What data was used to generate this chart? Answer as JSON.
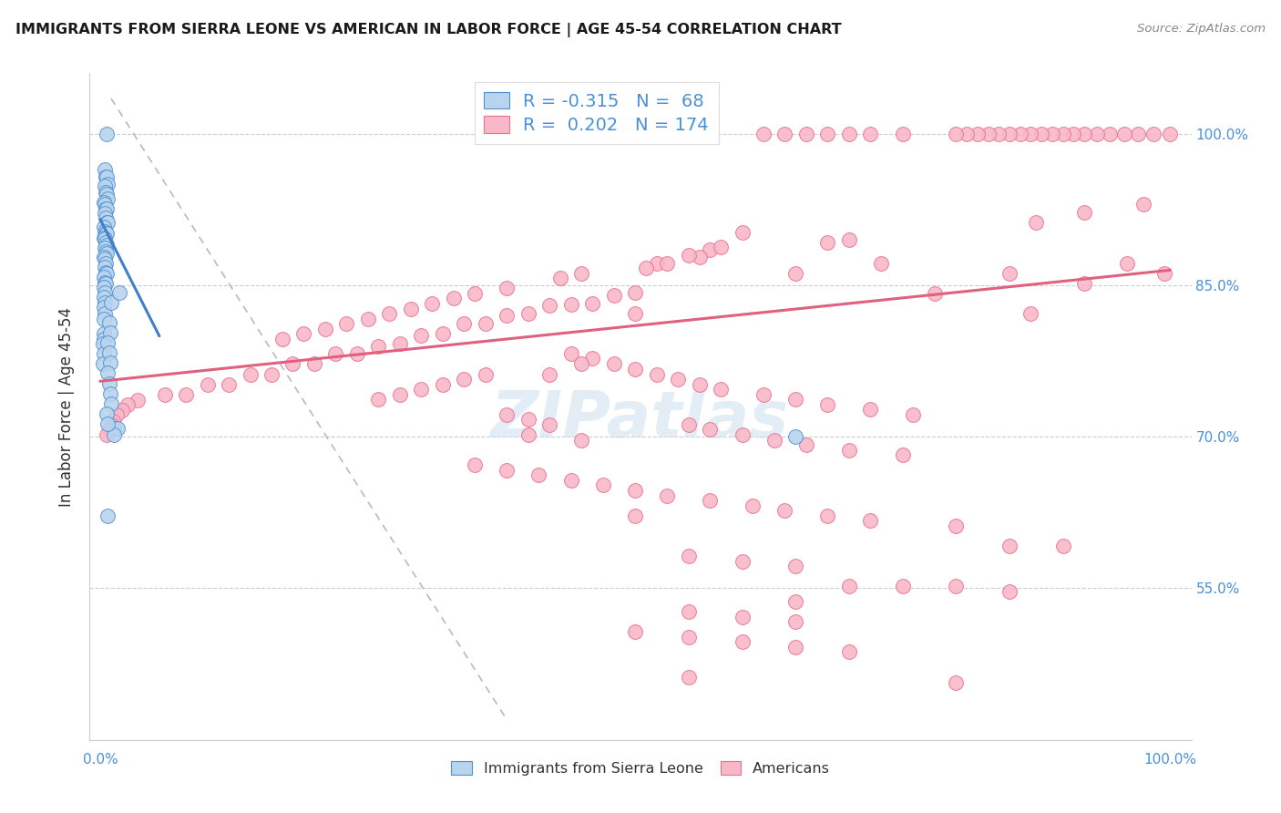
{
  "title": "IMMIGRANTS FROM SIERRA LEONE VS AMERICAN IN LABOR FORCE | AGE 45-54 CORRELATION CHART",
  "source": "Source: ZipAtlas.com",
  "ylabel": "In Labor Force | Age 45-54",
  "ytick_labels": [
    "100.0%",
    "85.0%",
    "70.0%",
    "55.0%"
  ],
  "ytick_values": [
    1.0,
    0.85,
    0.7,
    0.55
  ],
  "xlim": [
    -0.01,
    1.02
  ],
  "ylim": [
    0.4,
    1.06
  ],
  "blue_color": "#b8d4ee",
  "pink_color": "#f9b8c8",
  "blue_edge_color": "#5090d0",
  "pink_edge_color": "#e87090",
  "blue_line_color": "#4080c8",
  "pink_line_color": "#e06080",
  "dashed_line_color": "#b8b8c8",
  "watermark": "ZIPatlas",
  "legend_label_blue": "Immigrants from Sierra Leone",
  "legend_label_pink": "Americans",
  "blue_R": -0.315,
  "blue_N": 68,
  "pink_R": 0.202,
  "pink_N": 174,
  "blue_line": [
    [
      0.0,
      0.915
    ],
    [
      0.055,
      0.8
    ]
  ],
  "pink_line": [
    [
      0.0,
      0.755
    ],
    [
      1.0,
      0.865
    ]
  ],
  "dashed_line": [
    [
      0.01,
      1.035
    ],
    [
      0.38,
      0.42
    ]
  ],
  "blue_scatter": [
    [
      0.006,
      1.0
    ],
    [
      0.004,
      0.965
    ],
    [
      0.005,
      0.957
    ],
    [
      0.006,
      0.957
    ],
    [
      0.007,
      0.95
    ],
    [
      0.004,
      0.948
    ],
    [
      0.005,
      0.942
    ],
    [
      0.006,
      0.94
    ],
    [
      0.007,
      0.936
    ],
    [
      0.003,
      0.932
    ],
    [
      0.004,
      0.93
    ],
    [
      0.005,
      0.926
    ],
    [
      0.006,
      0.926
    ],
    [
      0.004,
      0.921
    ],
    [
      0.005,
      0.917
    ],
    [
      0.006,
      0.912
    ],
    [
      0.007,
      0.912
    ],
    [
      0.003,
      0.908
    ],
    [
      0.004,
      0.903
    ],
    [
      0.005,
      0.901
    ],
    [
      0.006,
      0.901
    ],
    [
      0.003,
      0.897
    ],
    [
      0.004,
      0.896
    ],
    [
      0.005,
      0.892
    ],
    [
      0.006,
      0.89
    ],
    [
      0.004,
      0.887
    ],
    [
      0.005,
      0.883
    ],
    [
      0.006,
      0.882
    ],
    [
      0.003,
      0.878
    ],
    [
      0.004,
      0.876
    ],
    [
      0.005,
      0.872
    ],
    [
      0.004,
      0.868
    ],
    [
      0.005,
      0.863
    ],
    [
      0.006,
      0.862
    ],
    [
      0.003,
      0.858
    ],
    [
      0.004,
      0.853
    ],
    [
      0.005,
      0.852
    ],
    [
      0.003,
      0.848
    ],
    [
      0.004,
      0.843
    ],
    [
      0.003,
      0.838
    ],
    [
      0.004,
      0.833
    ],
    [
      0.003,
      0.828
    ],
    [
      0.004,
      0.822
    ],
    [
      0.003,
      0.817
    ],
    [
      0.003,
      0.802
    ],
    [
      0.003,
      0.797
    ],
    [
      0.002,
      0.792
    ],
    [
      0.003,
      0.782
    ],
    [
      0.002,
      0.772
    ],
    [
      0.013,
      0.708
    ],
    [
      0.016,
      0.708
    ],
    [
      0.013,
      0.702
    ],
    [
      0.007,
      0.622
    ],
    [
      0.008,
      0.813
    ],
    [
      0.009,
      0.803
    ],
    [
      0.007,
      0.793
    ],
    [
      0.008,
      0.783
    ],
    [
      0.009,
      0.773
    ],
    [
      0.007,
      0.763
    ],
    [
      0.008,
      0.753
    ],
    [
      0.009,
      0.743
    ],
    [
      0.01,
      0.733
    ],
    [
      0.006,
      0.723
    ],
    [
      0.007,
      0.713
    ],
    [
      0.01,
      0.833
    ],
    [
      0.018,
      0.843
    ],
    [
      0.65,
      0.7
    ]
  ],
  "pink_scatter": [
    [
      1.0,
      1.0
    ],
    [
      0.985,
      1.0
    ],
    [
      0.97,
      1.0
    ],
    [
      0.957,
      1.0
    ],
    [
      0.944,
      1.0
    ],
    [
      0.932,
      1.0
    ],
    [
      0.92,
      1.0
    ],
    [
      0.91,
      1.0
    ],
    [
      0.9,
      1.0
    ],
    [
      0.89,
      1.0
    ],
    [
      0.88,
      1.0
    ],
    [
      0.87,
      1.0
    ],
    [
      0.86,
      1.0
    ],
    [
      0.85,
      1.0
    ],
    [
      0.84,
      1.0
    ],
    [
      0.83,
      1.0
    ],
    [
      0.82,
      1.0
    ],
    [
      0.81,
      1.0
    ],
    [
      0.8,
      1.0
    ],
    [
      0.75,
      1.0
    ],
    [
      0.72,
      1.0
    ],
    [
      0.7,
      1.0
    ],
    [
      0.68,
      1.0
    ],
    [
      0.66,
      1.0
    ],
    [
      0.64,
      1.0
    ],
    [
      0.62,
      1.0
    ],
    [
      0.975,
      0.93
    ],
    [
      0.92,
      0.922
    ],
    [
      0.875,
      0.912
    ],
    [
      0.7,
      0.895
    ],
    [
      0.68,
      0.892
    ],
    [
      0.57,
      0.885
    ],
    [
      0.56,
      0.878
    ],
    [
      0.55,
      0.88
    ],
    [
      0.52,
      0.872
    ],
    [
      0.45,
      0.862
    ],
    [
      0.43,
      0.857
    ],
    [
      0.995,
      0.862
    ],
    [
      0.5,
      0.843
    ],
    [
      0.48,
      0.84
    ],
    [
      0.46,
      0.832
    ],
    [
      0.44,
      0.831
    ],
    [
      0.42,
      0.83
    ],
    [
      0.4,
      0.822
    ],
    [
      0.38,
      0.82
    ],
    [
      0.36,
      0.812
    ],
    [
      0.34,
      0.812
    ],
    [
      0.32,
      0.802
    ],
    [
      0.3,
      0.8
    ],
    [
      0.28,
      0.792
    ],
    [
      0.26,
      0.79
    ],
    [
      0.24,
      0.782
    ],
    [
      0.22,
      0.782
    ],
    [
      0.2,
      0.772
    ],
    [
      0.18,
      0.772
    ],
    [
      0.16,
      0.762
    ],
    [
      0.14,
      0.762
    ],
    [
      0.12,
      0.752
    ],
    [
      0.1,
      0.752
    ],
    [
      0.08,
      0.742
    ],
    [
      0.06,
      0.742
    ],
    [
      0.035,
      0.736
    ],
    [
      0.025,
      0.732
    ],
    [
      0.02,
      0.726
    ],
    [
      0.015,
      0.722
    ],
    [
      0.012,
      0.716
    ],
    [
      0.01,
      0.712
    ],
    [
      0.008,
      0.707
    ],
    [
      0.006,
      0.702
    ],
    [
      0.6,
      0.902
    ],
    [
      0.58,
      0.888
    ],
    [
      0.53,
      0.872
    ],
    [
      0.51,
      0.867
    ],
    [
      0.38,
      0.847
    ],
    [
      0.35,
      0.842
    ],
    [
      0.33,
      0.837
    ],
    [
      0.31,
      0.832
    ],
    [
      0.29,
      0.827
    ],
    [
      0.27,
      0.822
    ],
    [
      0.25,
      0.817
    ],
    [
      0.65,
      0.862
    ],
    [
      0.23,
      0.812
    ],
    [
      0.21,
      0.807
    ],
    [
      0.19,
      0.802
    ],
    [
      0.17,
      0.797
    ],
    [
      0.73,
      0.872
    ],
    [
      0.78,
      0.842
    ],
    [
      0.85,
      0.862
    ],
    [
      0.92,
      0.852
    ],
    [
      0.96,
      0.872
    ],
    [
      0.87,
      0.822
    ],
    [
      0.5,
      0.822
    ],
    [
      0.44,
      0.782
    ],
    [
      0.46,
      0.778
    ],
    [
      0.48,
      0.772
    ],
    [
      0.5,
      0.767
    ],
    [
      0.52,
      0.762
    ],
    [
      0.54,
      0.757
    ],
    [
      0.56,
      0.752
    ],
    [
      0.58,
      0.747
    ],
    [
      0.62,
      0.742
    ],
    [
      0.65,
      0.737
    ],
    [
      0.68,
      0.732
    ],
    [
      0.72,
      0.727
    ],
    [
      0.76,
      0.722
    ],
    [
      0.36,
      0.762
    ],
    [
      0.34,
      0.757
    ],
    [
      0.32,
      0.752
    ],
    [
      0.3,
      0.747
    ],
    [
      0.28,
      0.742
    ],
    [
      0.26,
      0.737
    ],
    [
      0.38,
      0.722
    ],
    [
      0.4,
      0.717
    ],
    [
      0.42,
      0.712
    ],
    [
      0.55,
      0.712
    ],
    [
      0.57,
      0.707
    ],
    [
      0.6,
      0.702
    ],
    [
      0.63,
      0.697
    ],
    [
      0.66,
      0.692
    ],
    [
      0.7,
      0.687
    ],
    [
      0.75,
      0.682
    ],
    [
      0.35,
      0.672
    ],
    [
      0.38,
      0.667
    ],
    [
      0.41,
      0.662
    ],
    [
      0.44,
      0.657
    ],
    [
      0.47,
      0.652
    ],
    [
      0.5,
      0.647
    ],
    [
      0.53,
      0.642
    ],
    [
      0.57,
      0.637
    ],
    [
      0.61,
      0.632
    ],
    [
      0.64,
      0.627
    ],
    [
      0.68,
      0.622
    ],
    [
      0.72,
      0.617
    ],
    [
      0.8,
      0.612
    ],
    [
      0.85,
      0.592
    ],
    [
      0.9,
      0.592
    ],
    [
      0.55,
      0.582
    ],
    [
      0.6,
      0.577
    ],
    [
      0.65,
      0.572
    ],
    [
      0.65,
      0.537
    ],
    [
      0.7,
      0.552
    ],
    [
      0.75,
      0.552
    ],
    [
      0.8,
      0.552
    ],
    [
      0.85,
      0.547
    ],
    [
      0.55,
      0.527
    ],
    [
      0.6,
      0.522
    ],
    [
      0.65,
      0.517
    ],
    [
      0.5,
      0.507
    ],
    [
      0.55,
      0.502
    ],
    [
      0.6,
      0.497
    ],
    [
      0.65,
      0.492
    ],
    [
      0.7,
      0.487
    ],
    [
      0.55,
      0.462
    ],
    [
      0.8,
      0.457
    ],
    [
      0.4,
      0.702
    ],
    [
      0.45,
      0.697
    ],
    [
      0.45,
      0.772
    ],
    [
      0.42,
      0.762
    ],
    [
      0.5,
      0.622
    ]
  ]
}
